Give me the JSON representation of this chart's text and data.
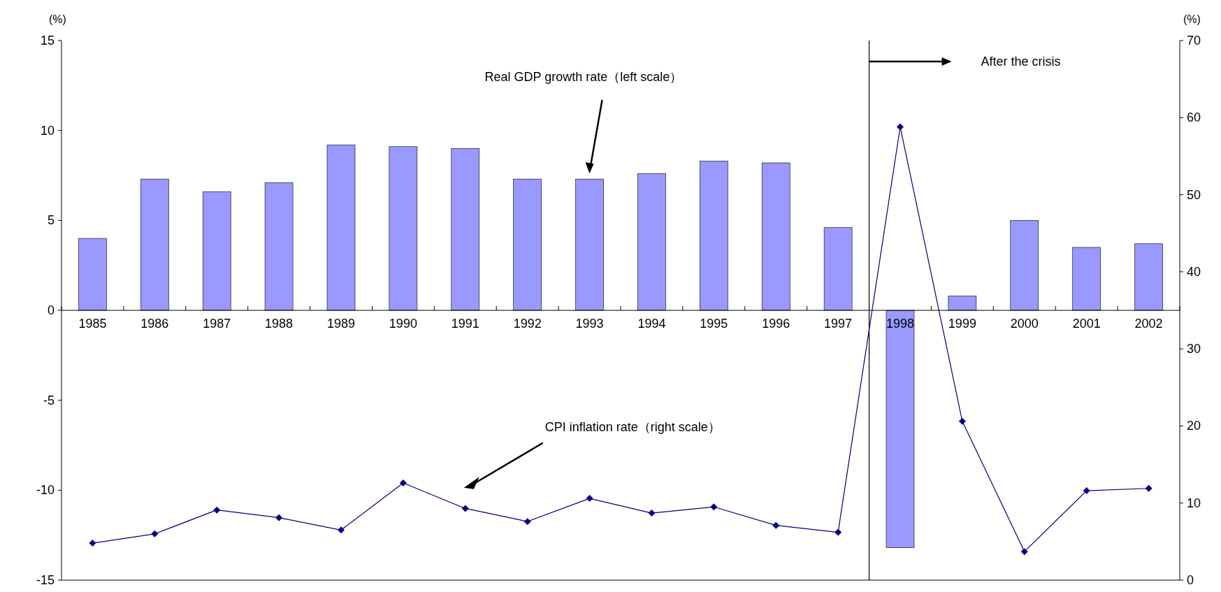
{
  "chart_data": {
    "type": "bar",
    "x": [
      1985,
      1986,
      1987,
      1988,
      1989,
      1990,
      1991,
      1992,
      1993,
      1994,
      1995,
      1996,
      1997,
      1998,
      1999,
      2000,
      2001,
      2002
    ],
    "series": [
      {
        "color": "#9999ff",
        "values": [
          4.0,
          7.3,
          6.6,
          7.1,
          9.2,
          9.1,
          9.0,
          7.3,
          7.3,
          7.6,
          8.3,
          8.2,
          4.6,
          -13.2,
          0.8,
          5.0,
          3.5,
          3.7
        ]
      },
      {
        "type": "line",
        "axis": "y2",
        "color": "#000080",
        "marker": "diamond",
        "line_style": "solid",
        "values": [
          4.8,
          6.0,
          9.1,
          8.1,
          6.5,
          12.6,
          9.3,
          7.6,
          10.6,
          8.7,
          9.5,
          7.1,
          6.2,
          58.8,
          20.6,
          3.7,
          11.6,
          11.9
        ]
      }
    ],
    "xlim": [
      1984.5,
      2002.5
    ],
    "xticks": [
      {
        "value": 1984.5,
        "label": null
      },
      1985,
      {
        "value": 1985.5,
        "label": null
      },
      1986,
      {
        "value": 1986.5,
        "label": null
      },
      1987,
      {
        "value": 1987.5,
        "label": null
      },
      1988,
      {
        "value": 1988.5,
        "label": null
      },
      1989,
      {
        "value": 1989.5,
        "label": null
      },
      1990,
      {
        "value": 1990.5,
        "label": null
      },
      1991,
      {
        "value": 1991.5,
        "label": null
      },
      1992,
      {
        "value": 1992.5,
        "label": null
      },
      1993,
      {
        "value": 1993.5,
        "label": null
      },
      1994,
      {
        "value": 1994.5,
        "label": null
      },
      1995,
      {
        "value": 1995.5,
        "label": null
      },
      1996,
      {
        "value": 1996.5,
        "label": null
      },
      1997,
      {
        "value": 1997.5,
        "label": null
      },
      1998,
      {
        "value": 1998.5,
        "label": null
      },
      1999,
      {
        "value": 1999.5,
        "label": null
      },
      2000,
      {
        "value": 2000.5,
        "label": null
      },
      2001,
      {
        "value": 2001.5,
        "label": null
      },
      2002,
      {
        "value": 2002.5,
        "label": null
      }
    ],
    "ylabel": "(%)",
    "y2label": "(%)",
    "ylim": [
      -15,
      15
    ],
    "yticks": [
      -15,
      -10,
      -5,
      0,
      5,
      10,
      15
    ],
    "y2lim": [
      0,
      70
    ],
    "y2ticks": [
      0,
      10,
      20,
      30,
      40,
      50,
      60,
      70
    ],
    "ref_lines": [
      {
        "axis": "x",
        "value": 1997.5,
        "label": "After the crisis",
        "color": "#000000"
      }
    ],
    "annotations": [
      "Real GDP growth rate（left scale）",
      "CPI inflation rate（right scale）"
    ],
    "grid": false
  }
}
